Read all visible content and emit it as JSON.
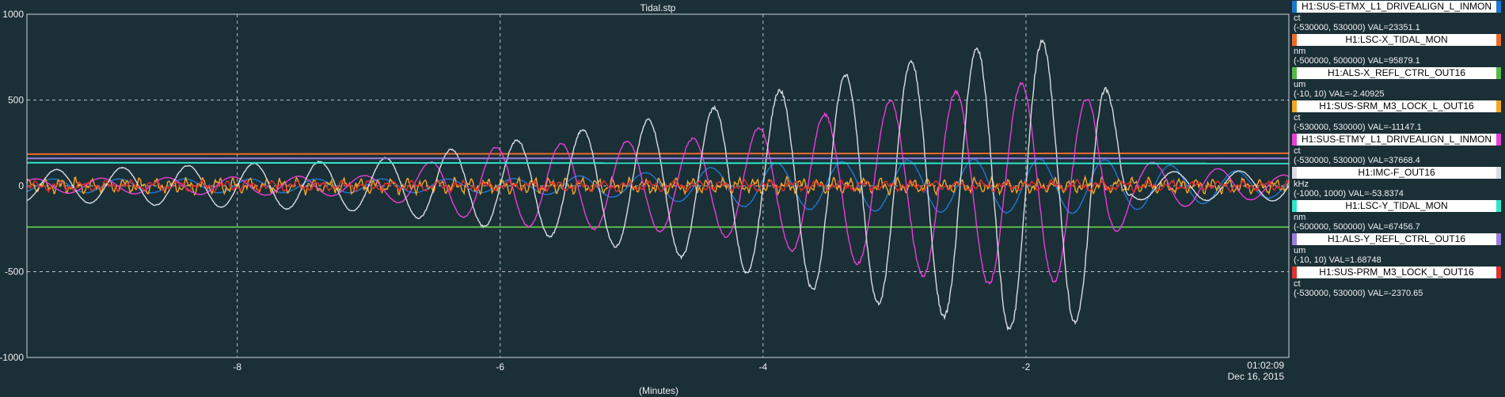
{
  "chart_data": {
    "type": "line",
    "title": "Tidal.stp",
    "xlabel": "(Minutes)",
    "time_label": "01:02:09",
    "date_label": "Dec 16, 2015",
    "xlim": [
      -9.6,
      0
    ],
    "ylim": [
      -1000,
      1000
    ],
    "x_ticks": [
      -8,
      -6,
      -4,
      -2
    ],
    "y_ticks": [
      1000,
      500,
      0,
      -500,
      -1000
    ],
    "grid": true,
    "legend_position": "right",
    "series": [
      {
        "name": "H1:SUS-ETMX_L1_DRIVEALIGN_L_INMON",
        "unit": "ct",
        "range": "(-530000, 530000) VAL=23351.1",
        "color": "#1e78d2",
        "shape": "sine",
        "amp": [
          [
            -9.6,
            40
          ],
          [
            -6,
            40
          ],
          [
            -5,
            70
          ],
          [
            -4,
            130
          ],
          [
            -3,
            150
          ],
          [
            -1.5,
            160
          ],
          [
            0,
            60
          ]
        ],
        "period": 0.5,
        "phase": 0.3,
        "offset": 0
      },
      {
        "name": "H1:LSC-X_TIDAL_MON",
        "unit": "nm",
        "range": "(-500000, 500000) VAL=95879.1",
        "color": "#ef6a2a",
        "shape": "flat",
        "points": [
          [
            -9.6,
            185
          ],
          [
            0,
            190
          ]
        ]
      },
      {
        "name": "H1:ALS-X_REFL_CTRL_OUT16",
        "unit": "um",
        "range": "(-10, 10) VAL=-2.40925",
        "color": "#58b848",
        "shape": "flat",
        "points": [
          [
            -9.6,
            -240
          ],
          [
            0,
            -240
          ]
        ]
      },
      {
        "name": "H1:SUS-SRM_M3_LOCK_L_OUT16",
        "unit": "ct",
        "range": "(-530000, 530000) VAL=-11147.1",
        "color": "#f5a623",
        "shape": "noise",
        "amp": [
          [
            -9.6,
            45
          ],
          [
            0,
            45
          ]
        ],
        "period": 0.12,
        "phase": 0.7,
        "offset": 0
      },
      {
        "name": "H1:SUS-ETMY_L1_DRIVEALIGN_L_INMON",
        "unit": "ct",
        "range": "(-530000, 530000) VAL=37668.4",
        "color": "#e83ed8",
        "shape": "sine",
        "amp": [
          [
            -9.6,
            40
          ],
          [
            -7,
            60
          ],
          [
            -6,
            230
          ],
          [
            -4.4,
            280
          ],
          [
            -3,
            500
          ],
          [
            -2,
            600
          ],
          [
            -1.5,
            500
          ],
          [
            -1.2,
            150
          ],
          [
            0,
            60
          ]
        ],
        "period": 0.5,
        "phase": 2.0,
        "offset": 0
      },
      {
        "name": "H1:IMC-F_OUT16",
        "unit": "kHz",
        "range": "(-1000, 1000) VAL=-53.8374",
        "color": "#d8dde2",
        "shape": "sine",
        "amp": [
          [
            -9.6,
            90
          ],
          [
            -7,
            150
          ],
          [
            -6,
            250
          ],
          [
            -4.5,
            430
          ],
          [
            -3.5,
            630
          ],
          [
            -2.5,
            780
          ],
          [
            -2,
            860
          ],
          [
            -1.5,
            780
          ],
          [
            -1.3,
            400
          ],
          [
            -1.2,
            80
          ],
          [
            0,
            90
          ]
        ],
        "period": 0.5,
        "phase": 0.0,
        "offset": 0
      },
      {
        "name": "H1:LSC-Y_TIDAL_MON",
        "unit": "nm",
        "range": "(-500000, 500000) VAL=67456.7",
        "color": "#2ee6c8",
        "shape": "flat",
        "points": [
          [
            -9.6,
            135
          ],
          [
            0,
            130
          ]
        ]
      },
      {
        "name": "H1:ALS-Y_REFL_CTRL_OUT16",
        "unit": "um",
        "range": "(-10, 10) VAL=1.68748",
        "color": "#9a7de0",
        "shape": "flat",
        "points": [
          [
            -9.6,
            160
          ],
          [
            0,
            160
          ]
        ]
      },
      {
        "name": "H1:SUS-PRM_M3_LOCK_L_OUT16",
        "unit": "ct",
        "range": "(-530000, 530000) VAL=-2370.65",
        "color": "#e03030",
        "shape": "noise",
        "amp": [
          [
            -9.6,
            30
          ],
          [
            0,
            30
          ]
        ],
        "period": 0.18,
        "phase": 1.4,
        "offset": 0
      }
    ]
  }
}
